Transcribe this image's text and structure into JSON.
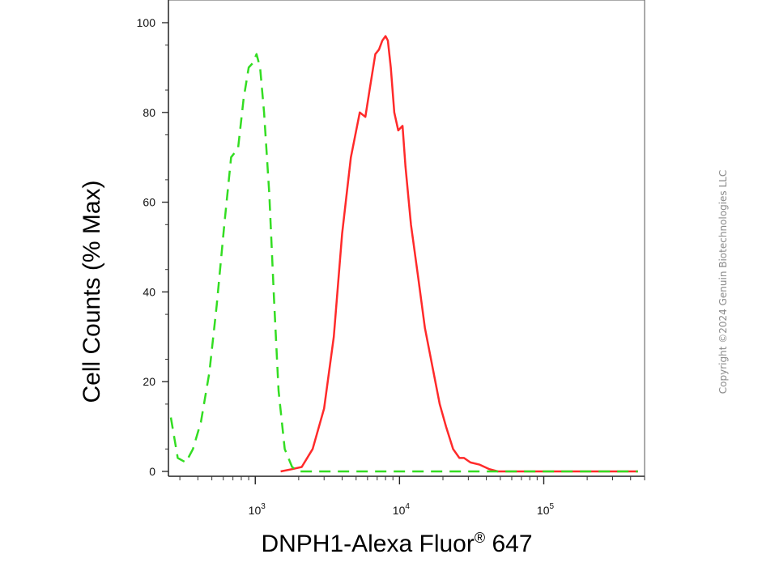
{
  "chart_data": {
    "type": "line",
    "xscale": "log",
    "xlim": [
      250,
      500000
    ],
    "ylim": [
      0,
      100
    ],
    "xlabel": "DNPH1-Alexa Fluor",
    "xlabel_superscript": "®",
    "xlabel_suffix": " 647",
    "ylabel": "Cell Counts (% Max)",
    "yticks": [
      {
        "value": 0,
        "label": "0"
      },
      {
        "value": 20,
        "label": "20"
      },
      {
        "value": 40,
        "label": "40"
      },
      {
        "value": 60,
        "label": "60"
      },
      {
        "value": 80,
        "label": "80"
      },
      {
        "value": 100,
        "label": "100"
      }
    ],
    "xticks": [
      {
        "value": 1000,
        "base": "10",
        "exp": "3"
      },
      {
        "value": 10000,
        "base": "10",
        "exp": "4"
      },
      {
        "value": 100000,
        "base": "10",
        "exp": "5"
      }
    ],
    "series": [
      {
        "color": "#ff2a2a",
        "style": "solid",
        "x": [
          1500,
          1800,
          2100,
          2500,
          3000,
          3500,
          4000,
          4600,
          5300,
          5800,
          6200,
          6800,
          7200,
          7600,
          8000,
          8300,
          8700,
          9200,
          9800,
          10500,
          11000,
          12000,
          13500,
          15000,
          17000,
          19000,
          21000,
          23500,
          26000,
          28000,
          31000,
          36000,
          42000,
          48000,
          60000,
          80000,
          120000,
          200000,
          450000
        ],
        "y": [
          0,
          0.5,
          1,
          5,
          14,
          30,
          53,
          70,
          80,
          79,
          85,
          93,
          94,
          96,
          97,
          96,
          90,
          80,
          76,
          77,
          68,
          55,
          43,
          32,
          23,
          15,
          10,
          5,
          3,
          3,
          2,
          1.5,
          0.5,
          0,
          0,
          0,
          0,
          0,
          0
        ]
      },
      {
        "color": "#33dd22",
        "style": "dashed",
        "x": [
          260,
          290,
          330,
          370,
          420,
          480,
          540,
          610,
          680,
          760,
          830,
          900,
          960,
          1020,
          1080,
          1150,
          1250,
          1350,
          1450,
          1600,
          1800,
          2000,
          3000,
          5000,
          10000,
          30000,
          100000,
          450000
        ],
        "y": [
          12,
          3,
          2,
          5,
          11,
          22,
          37,
          55,
          70,
          72,
          83,
          90,
          91,
          93,
          90,
          80,
          62,
          38,
          18,
          5,
          1,
          0,
          0,
          0,
          0,
          0,
          0,
          0
        ]
      }
    ]
  },
  "watermark": "Copyright ©2024 Genuin Biotechnologies LLC"
}
